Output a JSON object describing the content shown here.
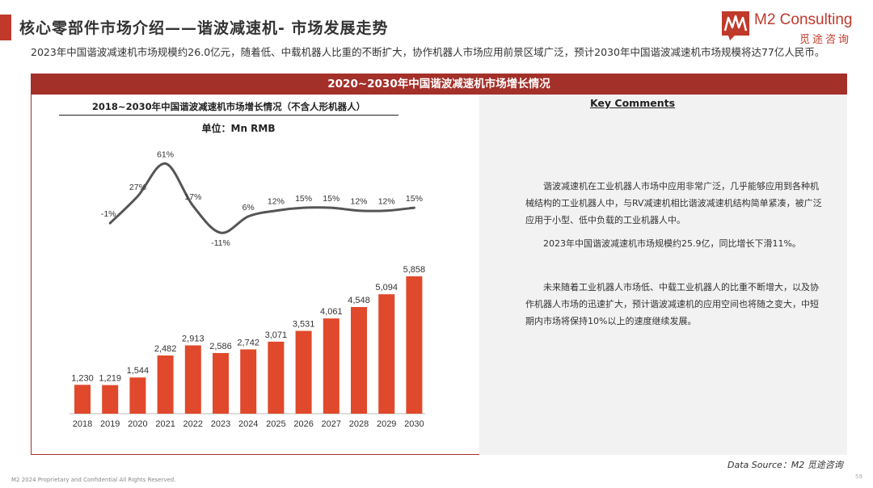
{
  "page": {
    "title": "核心零部件市场介绍——谐波减速机- 市场发展走势",
    "intro": "2023年中国谐波减速机市场规模约26.0亿元，随着低、中载机器人比重的不断扩大，协作机器人市场应用前景区域广泛，预计2030年中国谐波减速机市场规模将达77亿人民币。",
    "panel_header": "2020~2030年中国谐波减速机市场增长情况"
  },
  "logo": {
    "name": "M2 Consulting",
    "subtitle": "觅途咨询",
    "brand_color": "#c0392b"
  },
  "key_comments": {
    "title": "Key Comments",
    "paragraphs": [
      "谐波减速机在工业机器人市场中应用非常广泛，几乎能够应用到各种机械结构的工业机器人中，与RV减速机相比谐波减速机结构简单紧凑，被广泛应用于小型、低中负载的工业机器人中。",
      "2023年中国谐波减速机市场规模约25.9亿，同比增长下滑11%。",
      "未来随着工业机器人市场低、中载工业机器人的比重不断增大，以及协作机器人市场的迅速扩大，预计谐波减速机的应用空间也将随之变大，中短期内市场将保持10%以上的速度继续发展。"
    ]
  },
  "footer": {
    "copyright": "M2 2024 Proprietary and Confidential All Rights Reserved.",
    "source": "Data Source：M2 觅途咨询",
    "page_number": "59"
  },
  "chart_data": {
    "type": "bar",
    "title": "2018~2030年中国谐波减速机市场增长情况（不含人形机器人）",
    "unit": "单位：Mn RMB",
    "categories": [
      "2018",
      "2019",
      "2020",
      "2021",
      "2022",
      "2023",
      "2024",
      "2025",
      "2026",
      "2027",
      "2028",
      "2029",
      "2030"
    ],
    "values": [
      1230,
      1219,
      1544,
      2482,
      2913,
      2586,
      2742,
      3071,
      3531,
      4061,
      4548,
      5094,
      5858
    ],
    "value_labels": [
      "1,230",
      "1,219",
      "1,544",
      "2,482",
      "2,913",
      "2,586",
      "2,742",
      "3,071",
      "3,531",
      "4,061",
      "4,548",
      "5,094",
      "5,858"
    ],
    "growth_line": {
      "type": "line",
      "categories": [
        "2019",
        "2020",
        "2021",
        "2022",
        "2023",
        "2024",
        "2025",
        "2026",
        "2027",
        "2028",
        "2029",
        "2030"
      ],
      "values": [
        -1,
        27,
        61,
        17,
        -11,
        6,
        12,
        15,
        15,
        12,
        12,
        15
      ],
      "labels": [
        "-1%",
        "27%",
        "61%",
        "17%",
        "-11%",
        "6%",
        "12%",
        "15%",
        "15%",
        "12%",
        "12%",
        "15%"
      ],
      "color": "#555555"
    },
    "bar_color": "#e0492b",
    "grid": false
  }
}
